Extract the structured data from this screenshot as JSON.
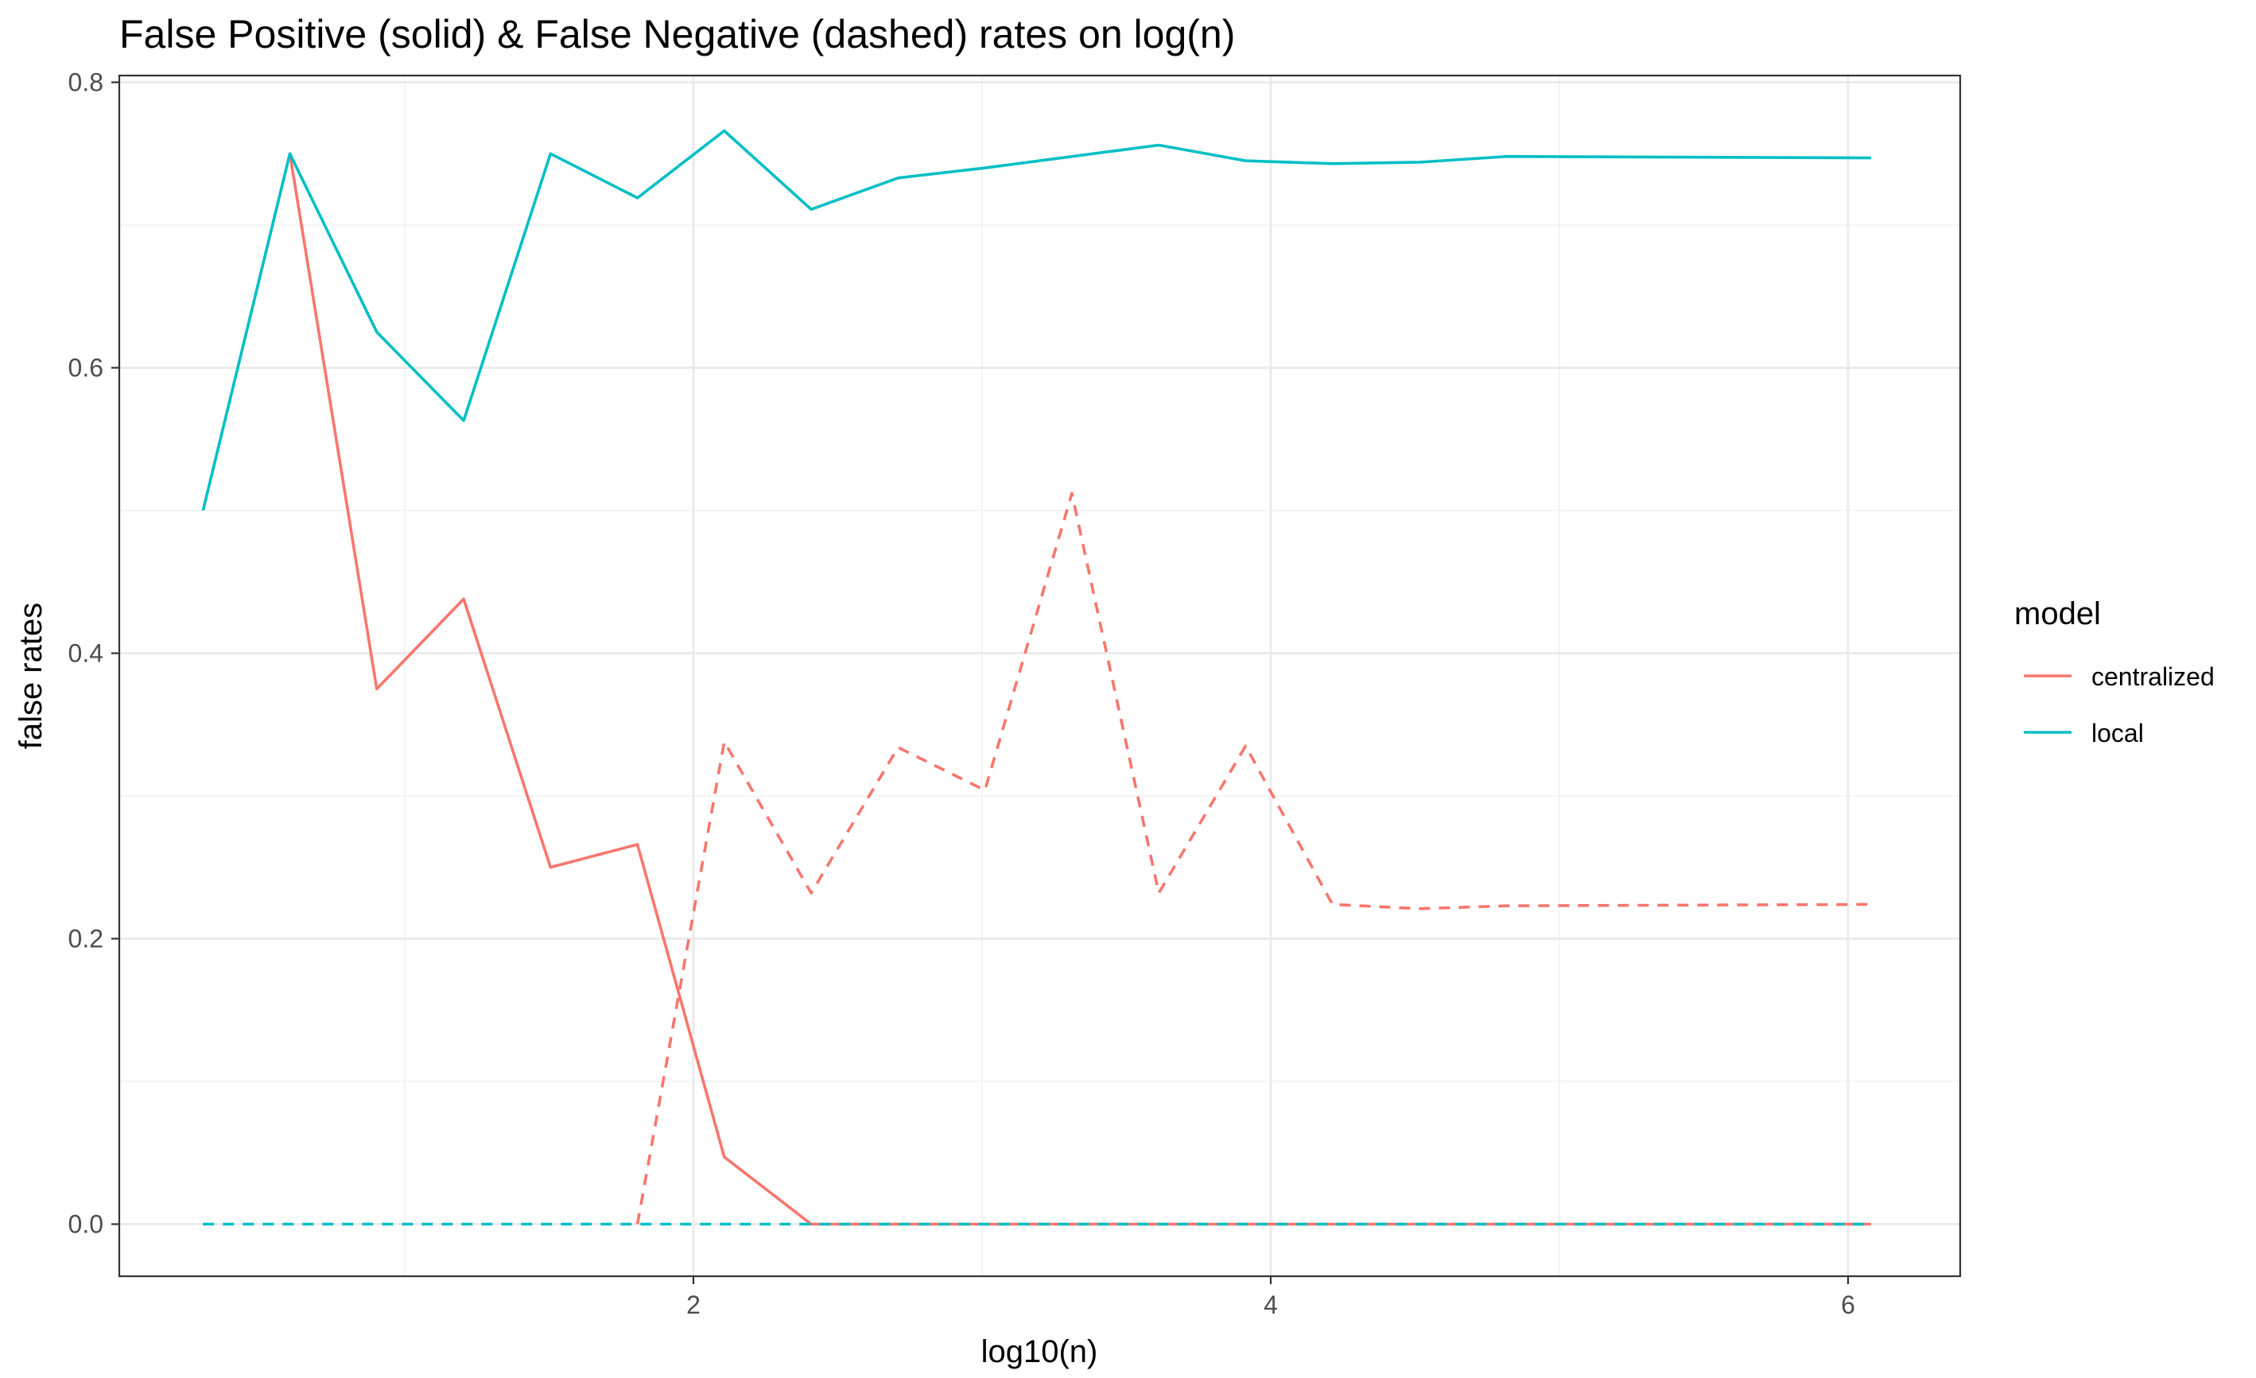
{
  "chart_data": {
    "type": "line",
    "title": "False Positive (solid) & False Negative (dashed) rates on log(n)",
    "xlabel": "log10(n)",
    "ylabel": "false rates",
    "xlim": [
      0.3,
      6.1
    ],
    "ylim": [
      0.0,
      0.8
    ],
    "x_ticks": [
      2,
      4,
      6
    ],
    "y_ticks": [
      0.0,
      0.2,
      0.4,
      0.6,
      0.8
    ],
    "x_tick_labels": [
      "2",
      "4",
      "6"
    ],
    "y_tick_labels": [
      "0.0",
      "0.2",
      "0.4",
      "0.6",
      "0.8"
    ],
    "grid": true,
    "legend": {
      "title": "model",
      "position": "right",
      "entries": [
        "centralized",
        "local"
      ]
    },
    "x": [
      0.301,
      0.602,
      0.903,
      1.204,
      1.505,
      1.806,
      2.107,
      2.408,
      2.709,
      3.01,
      3.311,
      3.612,
      3.913,
      4.214,
      4.515,
      4.816,
      6.08
    ],
    "series": [
      {
        "name": "centralized",
        "linetype": "solid",
        "color": "#F8766D",
        "values": [
          null,
          0.75,
          0.375,
          0.438,
          0.25,
          0.266,
          0.047,
          0.0,
          0.0,
          0.0,
          0.0,
          0.0,
          0.0,
          0.0,
          0.0,
          0.0,
          0.0
        ]
      },
      {
        "name": "centralized",
        "linetype": "dashed",
        "color": "#F8766D",
        "values": [
          null,
          null,
          null,
          null,
          null,
          0.0,
          0.338,
          0.232,
          0.334,
          0.304,
          0.512,
          0.232,
          0.335,
          0.224,
          0.221,
          0.223,
          0.224
        ]
      },
      {
        "name": "local",
        "linetype": "solid",
        "color": "#00BFC4",
        "values": [
          0.5,
          0.75,
          0.625,
          0.563,
          0.75,
          0.719,
          0.766,
          0.711,
          0.733,
          0.74,
          0.748,
          0.756,
          0.745,
          0.743,
          0.744,
          0.748,
          0.747
        ]
      },
      {
        "name": "local",
        "linetype": "dashed",
        "color": "#00BFC4",
        "values": [
          0.0,
          0.0,
          0.0,
          0.0,
          0.0,
          0.0,
          0.0,
          0.0,
          0.0,
          0.0,
          0.0,
          0.0,
          0.0,
          0.0,
          0.0,
          0.0,
          0.0
        ]
      }
    ]
  },
  "colors": {
    "centralized": "#F8766D",
    "local": "#00BFC4",
    "grid_major": "#EBEBEB",
    "grid_minor": "#F2F2F2",
    "panel_border": "#333333",
    "tick_text": "#4D4D4D"
  }
}
